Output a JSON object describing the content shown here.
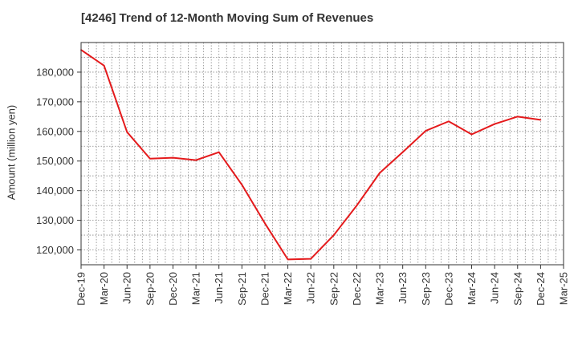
{
  "chart_data": {
    "type": "line",
    "title": "[4246]  Trend of 12-Month Moving Sum of Revenues",
    "xlabel": "",
    "ylabel": "Amount (million yen)",
    "x_tick_labels": [
      "Dec-19",
      "Mar-20",
      "Jun-20",
      "Sep-20",
      "Dec-20",
      "Mar-21",
      "Jun-21",
      "Sep-21",
      "Dec-21",
      "Mar-22",
      "Jun-22",
      "Sep-22",
      "Dec-22",
      "Mar-23",
      "Jun-23",
      "Sep-23",
      "Dec-23",
      "Mar-24",
      "Jun-24",
      "Sep-24",
      "Dec-24",
      "Mar-25"
    ],
    "y_ticks": [
      120000,
      130000,
      140000,
      150000,
      160000,
      170000,
      180000
    ],
    "y_tick_labels": [
      "120,000",
      "130,000",
      "140,000",
      "150,000",
      "160,000",
      "170,000",
      "180,000"
    ],
    "ylim": [
      115000,
      190000
    ],
    "grid": true,
    "series": [
      {
        "color": "#e41a1c",
        "x": [
          "Dec-19",
          "Mar-20",
          "Jun-20",
          "Sep-20",
          "Dec-20",
          "Mar-21",
          "Jun-21",
          "Sep-21",
          "Dec-21",
          "Mar-22",
          "Jun-22",
          "Sep-22",
          "Dec-22",
          "Mar-23",
          "Jun-23",
          "Sep-23",
          "Dec-23",
          "Mar-24",
          "Jun-24",
          "Sep-24",
          "Dec-24"
        ],
        "values": [
          187500,
          182200,
          159800,
          150800,
          151100,
          150300,
          153000,
          142000,
          129000,
          116800,
          117000,
          125000,
          135000,
          146000,
          153000,
          160200,
          163400,
          159000,
          162500,
          165000,
          163900
        ]
      }
    ]
  }
}
